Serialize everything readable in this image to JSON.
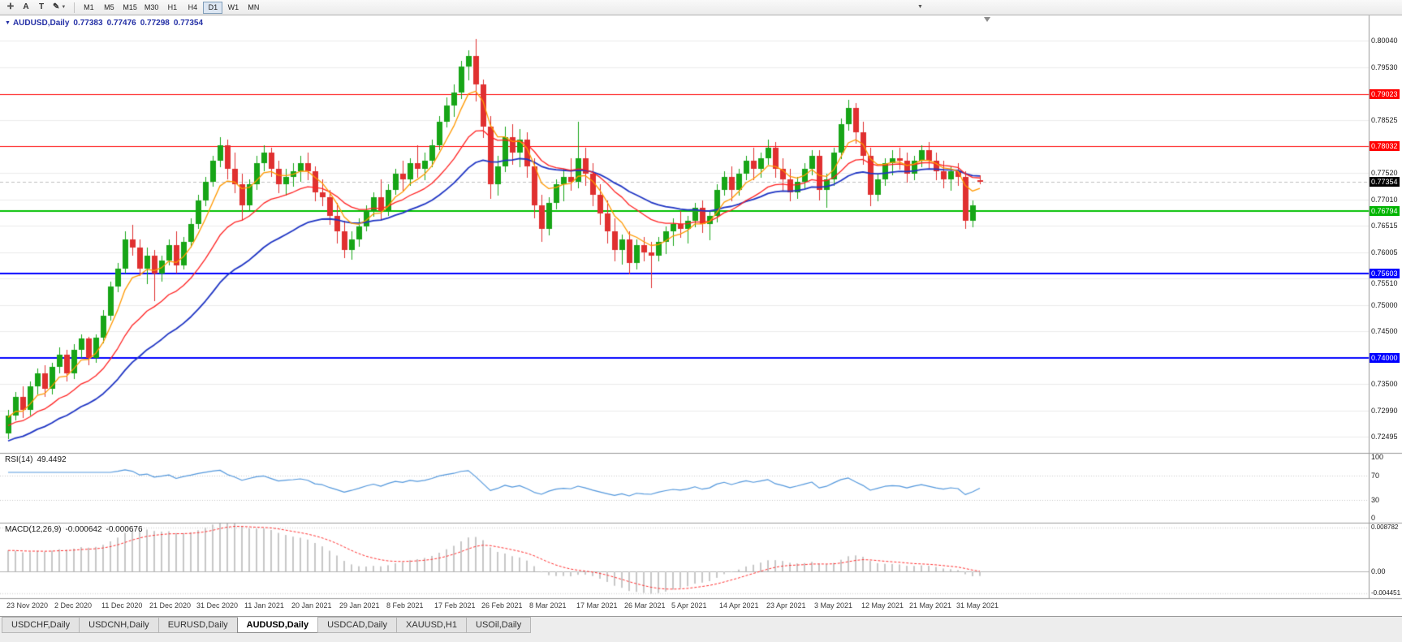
{
  "toolbar": {
    "tools": [
      {
        "name": "crosshair",
        "glyph": "✛"
      },
      {
        "name": "text-label",
        "glyph": "A"
      },
      {
        "name": "text",
        "glyph": "T"
      },
      {
        "name": "drawing-tools",
        "glyph": "✎",
        "chevron": "▼"
      }
    ],
    "timeframes": [
      "M1",
      "M5",
      "M15",
      "M30",
      "H1",
      "H4",
      "D1",
      "W1",
      "MN"
    ],
    "active_timeframe": "D1",
    "overflow_chevron": "▼"
  },
  "chart": {
    "marker": "▼",
    "title": "AUDUSD,Daily",
    "quote": {
      "open": "0.77383",
      "high": "0.77476",
      "low": "0.77298",
      "close": "0.77354"
    }
  },
  "price_axis": {
    "grid_labels": [
      {
        "text": "0.80040",
        "price": 0.8004
      },
      {
        "text": "0.79530",
        "price": 0.7953
      },
      {
        "text": "0.78525",
        "price": 0.78525
      },
      {
        "text": "0.77520",
        "price": 0.7752
      },
      {
        "text": "0.77010",
        "price": 0.7701
      },
      {
        "text": "0.76515",
        "price": 0.76515
      },
      {
        "text": "0.76005",
        "price": 0.76005
      },
      {
        "text": "0.75510",
        "price": 0.7551
      },
      {
        "text": "0.75000",
        "price": 0.75
      },
      {
        "text": "0.74500",
        "price": 0.745
      },
      {
        "text": "0.73500",
        "price": 0.735
      },
      {
        "text": "0.72990",
        "price": 0.7299
      },
      {
        "text": "0.72495",
        "price": 0.72495
      }
    ],
    "badges": [
      {
        "text": "0.79023",
        "price": 0.79023,
        "color": "#ff0000"
      },
      {
        "text": "0.78032",
        "price": 0.78032,
        "color": "#ff0000"
      },
      {
        "text": "0.77354",
        "price": 0.77354,
        "color": "#000000"
      },
      {
        "text": "0.76794",
        "price": 0.76794,
        "color": "#00b400"
      },
      {
        "text": "0.75603",
        "price": 0.75603,
        "color": "#0000ff"
      },
      {
        "text": "0.74000",
        "price": 0.74,
        "color": "#0000ff"
      }
    ]
  },
  "chart_data": {
    "type": "candlestick",
    "symbol": "AUDUSD",
    "timeframe": "Daily",
    "y_range": [
      0.722,
      0.8046
    ],
    "current_price": 0.77354,
    "candle_colors": {
      "bull": "#17a517",
      "bear": "#e03030"
    },
    "levels": [
      {
        "price": 0.79023,
        "color": "#ff0000",
        "width": 1
      },
      {
        "price": 0.78032,
        "color": "#ff0000",
        "width": 1
      },
      {
        "price": 0.76794,
        "color": "#00c000",
        "width": 2
      },
      {
        "price": 0.75603,
        "color": "#0000ff",
        "width": 2
      },
      {
        "price": 0.74,
        "color": "#0000ff",
        "width": 2
      }
    ],
    "moving_averages": [
      {
        "name": "slow",
        "period": 30,
        "color": "#1f35c4"
      },
      {
        "name": "mid",
        "period": 16,
        "color": "#ff2222"
      },
      {
        "name": "fast",
        "period": 6,
        "color": "#ff9900"
      }
    ],
    "x_tick_labels": [
      "23 Nov 2020",
      "2 Dec 2020",
      "11 Dec 2020",
      "21 Dec 2020",
      "31 Dec 2020",
      "11 Jan 2021",
      "20 Jan 2021",
      "29 Jan 2021",
      "8 Feb 2021",
      "17 Feb 2021",
      "26 Feb 2021",
      "8 Mar 2021",
      "17 Mar 2021",
      "26 Mar 2021",
      "5 Apr 2021",
      "14 Apr 2021",
      "23 Apr 2021",
      "3 May 2021",
      "12 May 2021",
      "21 May 2021",
      "31 May 2021"
    ],
    "ohlc": [
      [
        0.7255,
        0.73,
        0.7245,
        0.729
      ],
      [
        0.729,
        0.7335,
        0.728,
        0.7325
      ],
      [
        0.7325,
        0.7345,
        0.7285,
        0.73
      ],
      [
        0.73,
        0.7355,
        0.729,
        0.7345
      ],
      [
        0.7345,
        0.738,
        0.733,
        0.737
      ],
      [
        0.737,
        0.7385,
        0.7325,
        0.734
      ],
      [
        0.734,
        0.739,
        0.733,
        0.7382
      ],
      [
        0.7382,
        0.742,
        0.737,
        0.7405
      ],
      [
        0.7405,
        0.7415,
        0.7355,
        0.737
      ],
      [
        0.737,
        0.7425,
        0.736,
        0.7415
      ],
      [
        0.7415,
        0.7445,
        0.74,
        0.7436
      ],
      [
        0.7436,
        0.744,
        0.7385,
        0.74
      ],
      [
        0.74,
        0.7445,
        0.739,
        0.7438
      ],
      [
        0.7438,
        0.749,
        0.7428,
        0.748
      ],
      [
        0.748,
        0.7545,
        0.747,
        0.7535
      ],
      [
        0.7535,
        0.758,
        0.7525,
        0.757
      ],
      [
        0.757,
        0.764,
        0.756,
        0.7625
      ],
      [
        0.7625,
        0.7653,
        0.7595,
        0.761
      ],
      [
        0.761,
        0.7625,
        0.7555,
        0.757
      ],
      [
        0.757,
        0.761,
        0.754,
        0.7595
      ],
      [
        0.7595,
        0.7605,
        0.7508,
        0.756
      ],
      [
        0.756,
        0.7595,
        0.7545,
        0.7585
      ],
      [
        0.7585,
        0.7625,
        0.7575,
        0.7615
      ],
      [
        0.7615,
        0.764,
        0.756,
        0.7575
      ],
      [
        0.7575,
        0.763,
        0.7568,
        0.762
      ],
      [
        0.762,
        0.7665,
        0.761,
        0.7655
      ],
      [
        0.7655,
        0.771,
        0.7645,
        0.77
      ],
      [
        0.77,
        0.7745,
        0.7688,
        0.7735
      ],
      [
        0.7735,
        0.7785,
        0.7725,
        0.7775
      ],
      [
        0.7775,
        0.782,
        0.7763,
        0.7805
      ],
      [
        0.7805,
        0.7816,
        0.774,
        0.776
      ],
      [
        0.776,
        0.779,
        0.7713,
        0.773
      ],
      [
        0.773,
        0.775,
        0.766,
        0.769
      ],
      [
        0.769,
        0.774,
        0.7678,
        0.773
      ],
      [
        0.773,
        0.7785,
        0.772,
        0.777
      ],
      [
        0.777,
        0.7805,
        0.7755,
        0.779
      ],
      [
        0.779,
        0.78,
        0.7745,
        0.776
      ],
      [
        0.776,
        0.7775,
        0.7713,
        0.773
      ],
      [
        0.773,
        0.776,
        0.7708,
        0.7745
      ],
      [
        0.7745,
        0.777,
        0.7725,
        0.7755
      ],
      [
        0.7755,
        0.7785,
        0.7735,
        0.777
      ],
      [
        0.777,
        0.779,
        0.7738,
        0.7755
      ],
      [
        0.7755,
        0.7765,
        0.7698,
        0.7715
      ],
      [
        0.7715,
        0.774,
        0.7688,
        0.7705
      ],
      [
        0.7705,
        0.772,
        0.7653,
        0.767
      ],
      [
        0.767,
        0.7695,
        0.7618,
        0.764
      ],
      [
        0.764,
        0.766,
        0.759,
        0.7605
      ],
      [
        0.7605,
        0.764,
        0.7586,
        0.7625
      ],
      [
        0.7625,
        0.7665,
        0.7612,
        0.765
      ],
      [
        0.765,
        0.769,
        0.764,
        0.768
      ],
      [
        0.768,
        0.7715,
        0.7668,
        0.7705
      ],
      [
        0.7705,
        0.774,
        0.766,
        0.768
      ],
      [
        0.768,
        0.773,
        0.767,
        0.772
      ],
      [
        0.772,
        0.776,
        0.771,
        0.775
      ],
      [
        0.775,
        0.7775,
        0.7718,
        0.774
      ],
      [
        0.774,
        0.778,
        0.7728,
        0.777
      ],
      [
        0.777,
        0.7805,
        0.7743,
        0.776
      ],
      [
        0.776,
        0.779,
        0.7738,
        0.7775
      ],
      [
        0.7775,
        0.7815,
        0.7763,
        0.7805
      ],
      [
        0.7805,
        0.786,
        0.7795,
        0.785
      ],
      [
        0.785,
        0.7895,
        0.7838,
        0.788
      ],
      [
        0.788,
        0.792,
        0.7858,
        0.7905
      ],
      [
        0.7905,
        0.7965,
        0.7893,
        0.7955
      ],
      [
        0.7955,
        0.7985,
        0.7928,
        0.7975
      ],
      [
        0.7975,
        0.8007,
        0.7888,
        0.792
      ],
      [
        0.792,
        0.793,
        0.7818,
        0.784
      ],
      [
        0.784,
        0.786,
        0.7703,
        0.773
      ],
      [
        0.773,
        0.7785,
        0.7708,
        0.7765
      ],
      [
        0.7765,
        0.784,
        0.7753,
        0.782
      ],
      [
        0.782,
        0.7845,
        0.7768,
        0.779
      ],
      [
        0.779,
        0.7835,
        0.7763,
        0.7815
      ],
      [
        0.7815,
        0.783,
        0.7743,
        0.7765
      ],
      [
        0.7765,
        0.778,
        0.7665,
        0.769
      ],
      [
        0.769,
        0.771,
        0.762,
        0.7645
      ],
      [
        0.7645,
        0.7705,
        0.7633,
        0.7695
      ],
      [
        0.7695,
        0.774,
        0.7683,
        0.773
      ],
      [
        0.773,
        0.776,
        0.7698,
        0.7745
      ],
      [
        0.7745,
        0.778,
        0.7718,
        0.7735
      ],
      [
        0.7735,
        0.785,
        0.7723,
        0.778
      ],
      [
        0.778,
        0.78,
        0.7728,
        0.775
      ],
      [
        0.775,
        0.777,
        0.7688,
        0.771
      ],
      [
        0.771,
        0.773,
        0.7653,
        0.7675
      ],
      [
        0.7675,
        0.77,
        0.7618,
        0.764
      ],
      [
        0.764,
        0.7665,
        0.7583,
        0.7605
      ],
      [
        0.7605,
        0.7635,
        0.7578,
        0.7625
      ],
      [
        0.7625,
        0.764,
        0.7558,
        0.758
      ],
      [
        0.758,
        0.7625,
        0.7568,
        0.7615
      ],
      [
        0.7615,
        0.763,
        0.7583,
        0.76
      ],
      [
        0.76,
        0.762,
        0.7532,
        0.7595
      ],
      [
        0.7595,
        0.763,
        0.7583,
        0.762
      ],
      [
        0.762,
        0.765,
        0.7598,
        0.764
      ],
      [
        0.764,
        0.7665,
        0.7613,
        0.7655
      ],
      [
        0.7655,
        0.768,
        0.7628,
        0.7645
      ],
      [
        0.7645,
        0.767,
        0.7618,
        0.766
      ],
      [
        0.766,
        0.7695,
        0.7648,
        0.7685
      ],
      [
        0.7685,
        0.77,
        0.7638,
        0.7655
      ],
      [
        0.7655,
        0.768,
        0.7623,
        0.767
      ],
      [
        0.767,
        0.773,
        0.7658,
        0.772
      ],
      [
        0.772,
        0.7755,
        0.7708,
        0.7745
      ],
      [
        0.7745,
        0.7765,
        0.7698,
        0.772
      ],
      [
        0.772,
        0.776,
        0.7708,
        0.775
      ],
      [
        0.775,
        0.7785,
        0.7738,
        0.7775
      ],
      [
        0.7775,
        0.78,
        0.7738,
        0.776
      ],
      [
        0.776,
        0.779,
        0.7743,
        0.778
      ],
      [
        0.778,
        0.7815,
        0.7768,
        0.78
      ],
      [
        0.78,
        0.781,
        0.7743,
        0.776
      ],
      [
        0.776,
        0.778,
        0.7718,
        0.774
      ],
      [
        0.774,
        0.776,
        0.7698,
        0.7715
      ],
      [
        0.7715,
        0.7745,
        0.7703,
        0.7735
      ],
      [
        0.7735,
        0.777,
        0.7723,
        0.776
      ],
      [
        0.776,
        0.7795,
        0.7748,
        0.7785
      ],
      [
        0.7785,
        0.7795,
        0.77,
        0.772
      ],
      [
        0.772,
        0.775,
        0.7685,
        0.774
      ],
      [
        0.774,
        0.78,
        0.7728,
        0.779
      ],
      [
        0.779,
        0.7855,
        0.7778,
        0.7845
      ],
      [
        0.7845,
        0.7891,
        0.7833,
        0.7875
      ],
      [
        0.7875,
        0.7885,
        0.7808,
        0.783
      ],
      [
        0.783,
        0.785,
        0.7768,
        0.7785
      ],
      [
        0.7785,
        0.78,
        0.7688,
        0.771
      ],
      [
        0.771,
        0.775,
        0.7698,
        0.774
      ],
      [
        0.774,
        0.778,
        0.7728,
        0.777
      ],
      [
        0.777,
        0.7795,
        0.7748,
        0.778
      ],
      [
        0.778,
        0.78,
        0.7758,
        0.7775
      ],
      [
        0.7775,
        0.779,
        0.7733,
        0.775
      ],
      [
        0.775,
        0.7785,
        0.7738,
        0.7775
      ],
      [
        0.7775,
        0.7805,
        0.7763,
        0.7795
      ],
      [
        0.7795,
        0.781,
        0.7758,
        0.7775
      ],
      [
        0.7775,
        0.779,
        0.7738,
        0.7755
      ],
      [
        0.7755,
        0.7775,
        0.7723,
        0.774
      ],
      [
        0.774,
        0.7765,
        0.7718,
        0.7755
      ],
      [
        0.7755,
        0.777,
        0.7728,
        0.7745
      ],
      [
        0.7745,
        0.7755,
        0.7645,
        0.766
      ],
      [
        0.766,
        0.77,
        0.7648,
        0.769
      ],
      [
        0.77383,
        0.77476,
        0.77298,
        0.77354
      ]
    ]
  },
  "rsi": {
    "name": "RSI(14)",
    "value": "49.4492",
    "scale_labels": [
      "100",
      "70",
      "30",
      "0"
    ],
    "scale_values": [
      100,
      70,
      30,
      0
    ],
    "dotted_levels": [
      70,
      30
    ],
    "color": "#5599dd"
  },
  "macd": {
    "name": "MACD(12,26,9)",
    "value_main": "-0.000642",
    "value_signal": "-0.000676",
    "scale_labels": [
      "0.008782",
      "0.00",
      "-0.004451"
    ],
    "scale_values": [
      0.008782,
      0,
      -0.004451
    ],
    "histogram_color": "#c8c8c8",
    "signal_color": "#ff3333"
  },
  "tabs": {
    "items": [
      "USDCHF,Daily",
      "USDCNH,Daily",
      "EURUSD,Daily",
      "AUDUSD,Daily",
      "USDCAD,Daily",
      "XAUUSD,H1",
      "USOil,Daily"
    ],
    "active": "AUDUSD,Daily"
  }
}
